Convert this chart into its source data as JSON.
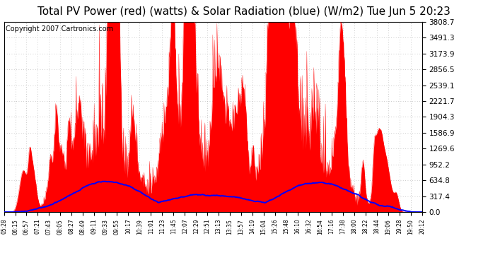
{
  "title": "Total PV Power (red) (watts) & Solar Radiation (blue) (W/m2) Tue Jun 5 20:23",
  "copyright": "Copyright 2007 Cartronics.com",
  "y_max": 3808.7,
  "y_min": 0.0,
  "y_ticks": [
    0.0,
    317.4,
    634.8,
    952.2,
    1269.6,
    1586.9,
    1904.3,
    2221.7,
    2539.1,
    2856.5,
    3173.9,
    3491.3,
    3808.7
  ],
  "y_tick_labels": [
    "0.0",
    "317.4",
    "634.8",
    "952.2",
    "1269.6",
    "1586.9",
    "1904.3",
    "2221.7",
    "2539.1",
    "2856.5",
    "3173.9",
    "3491.3",
    "3808.7"
  ],
  "x_labels": [
    "05:28",
    "06:15",
    "06:57",
    "07:21",
    "07:43",
    "08:05",
    "08:27",
    "08:49",
    "09:11",
    "09:33",
    "09:55",
    "10:17",
    "10:39",
    "11:01",
    "11:23",
    "11:45",
    "12:07",
    "12:29",
    "12:51",
    "13:13",
    "13:35",
    "13:57",
    "14:19",
    "15:04",
    "15:26",
    "15:48",
    "16:10",
    "16:32",
    "16:54",
    "17:16",
    "17:38",
    "18:00",
    "18:22",
    "18:44",
    "19:06",
    "19:28",
    "19:50",
    "20:12"
  ],
  "bg_color": "#ffffff",
  "grid_color": "#bbbbbb",
  "red_color": "#ff0000",
  "blue_color": "#0000ff",
  "title_fontsize": 11,
  "copyright_fontsize": 7
}
